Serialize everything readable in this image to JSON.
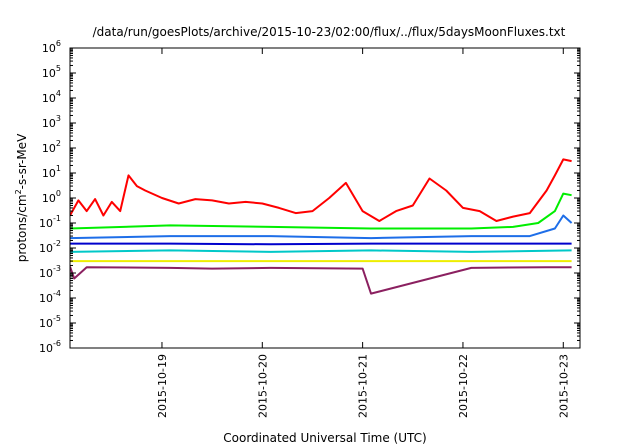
{
  "chart_data": {
    "type": "line",
    "title": "/data/run/goesPlots/archive/2015-10-23/02:00/flux/../flux/5daysMoonFluxes.txt",
    "xlabel": "Coordinated Universal Time (UTC)",
    "ylabel": {
      "base": "protons/cm",
      "sup": "2",
      "rest": "-s-sr-MeV"
    },
    "y_scale": "log",
    "ylim": [
      1e-06,
      1000000.0
    ],
    "y_ticks": [
      {
        "value": 1e-06,
        "base": "10",
        "exp": "-6"
      },
      {
        "value": 1e-05,
        "base": "10",
        "exp": "-5"
      },
      {
        "value": 0.0001,
        "base": "10",
        "exp": "-4"
      },
      {
        "value": 0.001,
        "base": "10",
        "exp": "-3"
      },
      {
        "value": 0.01,
        "base": "10",
        "exp": "-2"
      },
      {
        "value": 0.1,
        "base": "10",
        "exp": "-1"
      },
      {
        "value": 1,
        "base": "10",
        "exp": "0"
      },
      {
        "value": 10,
        "base": "10",
        "exp": "1"
      },
      {
        "value": 100,
        "base": "10",
        "exp": "2"
      },
      {
        "value": 1000,
        "base": "10",
        "exp": "3"
      },
      {
        "value": 10000,
        "base": "10",
        "exp": "4"
      },
      {
        "value": 100000,
        "base": "10",
        "exp": "5"
      },
      {
        "value": 1000000,
        "base": "10",
        "exp": "6"
      }
    ],
    "xlim": [
      "2015-10-18 02:00",
      "2015-10-23 02:00"
    ],
    "x_ticks": [
      "2015-10-19",
      "2015-10-20",
      "2015-10-21",
      "2015-10-22",
      "2015-10-23"
    ],
    "grid": false,
    "legend": "none",
    "series": [
      {
        "color": "#ff0000",
        "x": [
          "2015-10-18 02:00",
          "2015-10-18 04:00",
          "2015-10-18 06:00",
          "2015-10-18 08:00",
          "2015-10-18 10:00",
          "2015-10-18 12:00",
          "2015-10-18 14:00",
          "2015-10-18 16:00",
          "2015-10-18 18:00",
          "2015-10-18 20:00",
          "2015-10-19 00:00",
          "2015-10-19 04:00",
          "2015-10-19 08:00",
          "2015-10-19 12:00",
          "2015-10-19 16:00",
          "2015-10-19 20:00",
          "2015-10-20 00:00",
          "2015-10-20 04:00",
          "2015-10-20 08:00",
          "2015-10-20 12:00",
          "2015-10-20 16:00",
          "2015-10-20 20:00",
          "2015-10-21 00:00",
          "2015-10-21 04:00",
          "2015-10-21 08:00",
          "2015-10-21 12:00",
          "2015-10-21 16:00",
          "2015-10-21 20:00",
          "2015-10-22 00:00",
          "2015-10-22 04:00",
          "2015-10-22 08:00",
          "2015-10-22 12:00",
          "2015-10-22 16:00",
          "2015-10-22 20:00",
          "2015-10-22 22:00",
          "2015-10-23 00:00",
          "2015-10-23 02:00"
        ],
        "values": [
          0.2,
          0.8,
          0.3,
          0.9,
          0.2,
          0.7,
          0.3,
          8,
          3,
          2,
          1,
          0.6,
          0.9,
          0.8,
          0.6,
          0.7,
          0.6,
          0.4,
          0.25,
          0.3,
          1,
          4,
          0.3,
          0.12,
          0.3,
          0.5,
          6,
          2,
          0.4,
          0.3,
          0.12,
          0.18,
          0.25,
          2,
          8,
          35,
          30
        ]
      },
      {
        "color": "#00ee00",
        "x": [
          "2015-10-18 02:00",
          "2015-10-19 02:00",
          "2015-10-20 02:00",
          "2015-10-21 02:00",
          "2015-10-22 02:00",
          "2015-10-22 12:00",
          "2015-10-22 18:00",
          "2015-10-22 22:00",
          "2015-10-23 00:00",
          "2015-10-23 02:00"
        ],
        "values": [
          0.06,
          0.08,
          0.07,
          0.06,
          0.06,
          0.07,
          0.1,
          0.3,
          1.5,
          1.3
        ]
      },
      {
        "color": "#1e6ee8",
        "x": [
          "2015-10-18 02:00",
          "2015-10-19 02:00",
          "2015-10-20 02:00",
          "2015-10-21 02:00",
          "2015-10-22 02:00",
          "2015-10-22 16:00",
          "2015-10-22 22:00",
          "2015-10-23 00:00",
          "2015-10-23 02:00"
        ],
        "values": [
          0.025,
          0.03,
          0.03,
          0.025,
          0.03,
          0.03,
          0.06,
          0.2,
          0.1
        ]
      },
      {
        "color": "#0000cc",
        "x": [
          "2015-10-18 02:00",
          "2015-10-19 02:00",
          "2015-10-20 02:00",
          "2015-10-21 02:00",
          "2015-10-22 02:00",
          "2015-10-23 02:00"
        ],
        "values": [
          0.015,
          0.015,
          0.014,
          0.015,
          0.015,
          0.015
        ]
      },
      {
        "color": "#00c8c8",
        "x": [
          "2015-10-18 02:00",
          "2015-10-19 02:00",
          "2015-10-20 02:00",
          "2015-10-21 02:00",
          "2015-10-22 02:00",
          "2015-10-23 02:00"
        ],
        "values": [
          0.007,
          0.008,
          0.007,
          0.008,
          0.007,
          0.008
        ]
      },
      {
        "color": "#eeee00",
        "x": [
          "2015-10-18 02:00",
          "2015-10-19 02:00",
          "2015-10-20 02:00",
          "2015-10-21 02:00",
          "2015-10-22 02:00",
          "2015-10-23 02:00"
        ],
        "values": [
          0.003,
          0.003,
          0.003,
          0.003,
          0.003,
          0.003
        ]
      },
      {
        "color": "#8b2060",
        "x": [
          "2015-10-18 02:00",
          "2015-10-18 03:00",
          "2015-10-18 06:00",
          "2015-10-19 02:00",
          "2015-10-19 12:00",
          "2015-10-20 02:00",
          "2015-10-21 00:00",
          "2015-10-21 02:00",
          "2015-10-22 02:00",
          "2015-10-22 20:00",
          "2015-10-23 02:00"
        ],
        "values": [
          0.0018,
          0.0006,
          0.0017,
          0.0016,
          0.0015,
          0.0016,
          0.0015,
          0.00015,
          0.0016,
          0.0017,
          0.0017
        ]
      }
    ]
  }
}
